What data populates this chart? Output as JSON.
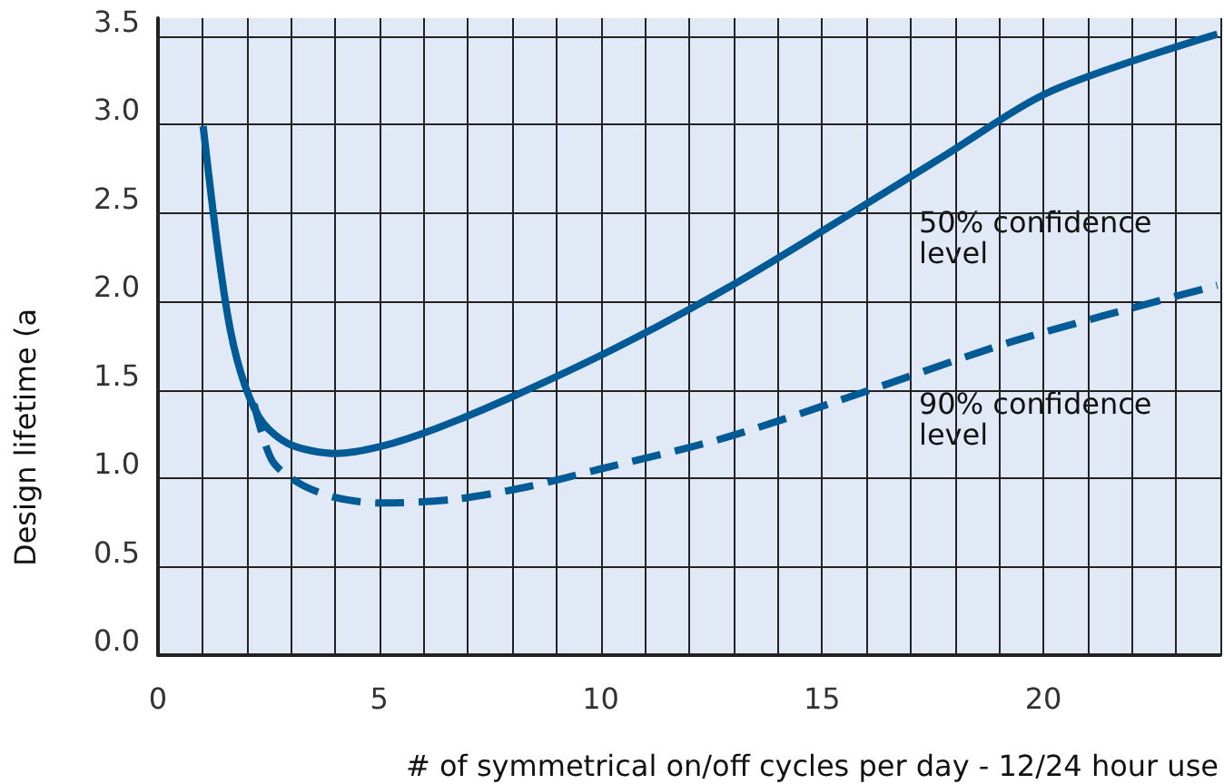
{
  "chart_data": {
    "type": "line",
    "ylabel": "Design lifetime (a",
    "xlabel": "# of symmetrical on/off cycles per day - 12/24 hour use",
    "xlim": [
      0,
      24
    ],
    "xticks": [
      0,
      {
        "value": 1,
        "label": null
      },
      {
        "value": 2,
        "label": null
      },
      {
        "value": 3,
        "label": null
      },
      {
        "value": 4,
        "label": null
      },
      5,
      {
        "value": 6,
        "label": null
      },
      {
        "value": 7,
        "label": null
      },
      {
        "value": 8,
        "label": null
      },
      {
        "value": 9,
        "label": null
      },
      10,
      {
        "value": 11,
        "label": null
      },
      {
        "value": 12,
        "label": null
      },
      {
        "value": 13,
        "label": null
      },
      {
        "value": 14,
        "label": null
      },
      15,
      {
        "value": 16,
        "label": null
      },
      {
        "value": 17,
        "label": null
      },
      {
        "value": 18,
        "label": null
      },
      {
        "value": 19,
        "label": null
      },
      20,
      {
        "value": 21,
        "label": null
      },
      {
        "value": 22,
        "label": null
      },
      {
        "value": 23,
        "label": null
      },
      {
        "value": 24,
        "label": null
      }
    ],
    "ylim": [
      0,
      3.6
    ],
    "yticks": [
      {
        "value": 0,
        "label": "0.0"
      },
      0.5,
      {
        "value": 1,
        "label": "1.0"
      },
      1.5,
      {
        "value": 2,
        "label": "2.0"
      },
      2.5,
      {
        "value": 3,
        "label": "3.0"
      },
      3.5
    ],
    "grid": true,
    "marker": "none",
    "series": [
      {
        "color": "#005a96",
        "line_style": "solid",
        "x": [
          1.02,
          1.35,
          1.64,
          1.97,
          2.38,
          2.99,
          4.02,
          5.04,
          6.27,
          7.91,
          10.37,
          12.83,
          15.29,
          17.75,
          20.2,
          23.93
        ],
        "values": [
          2.99,
          2.3,
          1.83,
          1.52,
          1.31,
          1.19,
          1.14,
          1.18,
          1.28,
          1.45,
          1.74,
          2.07,
          2.44,
          2.82,
          3.19,
          3.51
        ]
      },
      {
        "color": "#005a96",
        "line_style": "dashed",
        "x": [
          2.17,
          2.58,
          3.2,
          4.02,
          5.04,
          6.68,
          8.32,
          9.96,
          12.83,
          16.1,
          19.4,
          23.93
        ],
        "values": [
          1.42,
          1.1,
          0.97,
          0.89,
          0.86,
          0.88,
          0.95,
          1.05,
          1.23,
          1.5,
          1.78,
          2.09
        ]
      }
    ],
    "annotations": [
      "50% confidence\nlevel",
      "90% confidence\nlevel"
    ]
  }
}
